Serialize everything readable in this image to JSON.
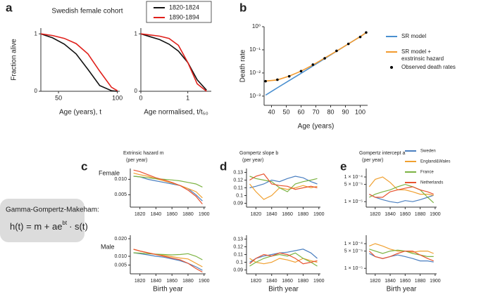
{
  "figure": {
    "panels": [
      "a",
      "b",
      "c",
      "d",
      "e"
    ],
    "rows": [
      "Female",
      "Male"
    ],
    "formula": {
      "heading": "Gamma-Gompertz-Makeham:",
      "lhs": "h(t) =  m + ae",
      "exp": "bt",
      "rhs": "· s(t)"
    }
  },
  "chart_data": [
    {
      "type": "line",
      "title": "Swedish female cohort",
      "xlabel": "Age (years), t",
      "ylabel": "Fraction alive",
      "x": [
        35,
        45,
        55,
        65,
        75,
        85,
        95,
        100
      ],
      "xlim": [
        35,
        102
      ],
      "ylim": [
        0,
        1.1
      ],
      "xticks": [
        50,
        100
      ],
      "yticks": [
        0,
        1
      ],
      "legend": "upper right",
      "series": [
        {
          "name": "1820-1824",
          "color": "#111111",
          "values": [
            1,
            0.93,
            0.82,
            0.65,
            0.38,
            0.1,
            0.01,
            0
          ]
        },
        {
          "name": "1890-1894",
          "color": "#e0201b",
          "values": [
            1,
            0.97,
            0.92,
            0.83,
            0.65,
            0.35,
            0.07,
            0.01
          ]
        }
      ]
    },
    {
      "type": "line",
      "xlabel": "Age normalised, t/t₅₀",
      "x": [
        0,
        0.2,
        0.4,
        0.6,
        0.8,
        1.0,
        1.2,
        1.4
      ],
      "xlim": [
        0,
        1.5
      ],
      "ylim": [
        0,
        1.1
      ],
      "xticks": [
        0,
        1
      ],
      "yticks": [
        0,
        1
      ],
      "series": [
        {
          "color": "#111111",
          "values": [
            1,
            0.95,
            0.9,
            0.82,
            0.7,
            0.5,
            0.2,
            0.02
          ]
        },
        {
          "color": "#e0201b",
          "values": [
            1,
            0.98,
            0.96,
            0.92,
            0.8,
            0.5,
            0.13,
            0
          ]
        }
      ]
    },
    {
      "type": "line",
      "xlabel": "Age (years)",
      "ylabel": "Death rate",
      "ylog": true,
      "legend": "right",
      "x": [
        36,
        44,
        52,
        60,
        68,
        76,
        84,
        92,
        100,
        104
      ],
      "xlim": [
        35,
        105
      ],
      "ylim": [
        0.0004,
        1
      ],
      "xticks": [
        40,
        50,
        60,
        70,
        80,
        90,
        100
      ],
      "yticks": [
        {
          "value": 0.001,
          "label": "10⁻³"
        },
        {
          "value": 0.01,
          "label": "10⁻²"
        },
        {
          "value": 0.1,
          "label": "10⁻¹"
        },
        {
          "value": 1,
          "label": "10⁰"
        }
      ],
      "series": [
        {
          "name": "SR model",
          "color": "#4a8fcf",
          "values": [
            0.0011,
            0.0023,
            0.0047,
            0.0097,
            0.02,
            0.042,
            0.087,
            0.18,
            0.37,
            0.55
          ]
        },
        {
          "name": "SR model + exstrinsic hazard",
          "color": "#f29a2e",
          "values": [
            0.0045,
            0.005,
            0.0073,
            0.012,
            0.022,
            0.044,
            0.088,
            0.18,
            0.37,
            0.55
          ]
        },
        {
          "name": "Observed death rates",
          "color": "#000000",
          "mode": "markers",
          "values": [
            0.0044,
            0.0051,
            0.0072,
            0.012,
            0.023,
            0.043,
            0.09,
            0.18,
            0.36,
            0.56
          ]
        }
      ]
    },
    {
      "type": "line",
      "title": "Extrinsic hazard m",
      "subtitle": "(per year)",
      "x": [
        1812,
        1820,
        1830,
        1840,
        1850,
        1860,
        1870,
        1880,
        1890,
        1898
      ],
      "xlim": [
        1808,
        1902
      ],
      "ylim": [
        0.001,
        0.0135
      ],
      "xticks": [
        1820,
        1840,
        1860,
        1880,
        1900
      ],
      "yticks": [
        {
          "value": 0.005,
          "label": "0.005"
        },
        {
          "value": 0.01,
          "label": "0.010"
        }
      ],
      "series": [
        {
          "color": "#4a7fc0",
          "values": [
            0.011,
            0.0108,
            0.01,
            0.0095,
            0.009,
            0.0085,
            0.008,
            0.007,
            0.005,
            0.003
          ]
        },
        {
          "color": "#f0a030",
          "values": [
            0.012,
            0.0115,
            0.011,
            0.0102,
            0.0095,
            0.0088,
            0.008,
            0.007,
            0.006,
            0.004
          ]
        },
        {
          "color": "#7cb342",
          "values": [
            0.011,
            0.0108,
            0.0105,
            0.0102,
            0.01,
            0.0098,
            0.0095,
            0.009,
            0.0085,
            0.0075
          ]
        },
        {
          "color": "#e8532f",
          "values": [
            0.013,
            0.0125,
            0.0115,
            0.0105,
            0.0098,
            0.009,
            0.008,
            0.0065,
            0.0045,
            0.002
          ]
        }
      ]
    },
    {
      "type": "line",
      "xlabel": "Birth year",
      "x": [
        1812,
        1820,
        1830,
        1840,
        1850,
        1860,
        1870,
        1880,
        1890,
        1898
      ],
      "xlim": [
        1808,
        1902
      ],
      "ylim": [
        0,
        0.022
      ],
      "xticks": [
        1820,
        1840,
        1860,
        1880,
        1900
      ],
      "yticks": [
        {
          "value": 0.005,
          "label": "0.005"
        },
        {
          "value": 0.01,
          "label": "0.010"
        },
        {
          "value": 0.02,
          "label": "0.020"
        }
      ],
      "series": [
        {
          "color": "#4a7fc0",
          "values": [
            0.012,
            0.0115,
            0.0108,
            0.01,
            0.0095,
            0.0085,
            0.0075,
            0.006,
            0.004,
            0.002
          ]
        },
        {
          "color": "#f0a030",
          "values": [
            0.014,
            0.013,
            0.012,
            0.011,
            0.0105,
            0.0098,
            0.009,
            0.0085,
            0.006,
            0.004
          ]
        },
        {
          "color": "#7cb342",
          "values": [
            0.012,
            0.0118,
            0.0115,
            0.0112,
            0.011,
            0.0108,
            0.011,
            0.0115,
            0.01,
            0.008
          ]
        },
        {
          "color": "#e8532f",
          "values": [
            0.014,
            0.013,
            0.012,
            0.011,
            0.01,
            0.009,
            0.008,
            0.006,
            0.003,
            0.001
          ]
        }
      ]
    },
    {
      "type": "line",
      "title": "Gompertz slope b",
      "subtitle": "(per year)",
      "x": [
        1812,
        1820,
        1830,
        1840,
        1850,
        1860,
        1870,
        1880,
        1890,
        1898
      ],
      "xlim": [
        1808,
        1902
      ],
      "ylim": [
        0.085,
        0.135
      ],
      "xticks": [
        1820,
        1840,
        1860,
        1880,
        1900
      ],
      "yticks": [
        0.09,
        0.1,
        0.11,
        0.12,
        0.13
      ],
      "series": [
        {
          "color": "#4a7fc0",
          "values": [
            0.11,
            0.112,
            0.115,
            0.12,
            0.118,
            0.122,
            0.125,
            0.123,
            0.118,
            0.115
          ]
        },
        {
          "color": "#f0a030",
          "values": [
            0.115,
            0.105,
            0.095,
            0.1,
            0.11,
            0.108,
            0.11,
            0.113,
            0.11,
            0.112
          ]
        },
        {
          "color": "#7cb342",
          "values": [
            0.125,
            0.122,
            0.12,
            0.118,
            0.11,
            0.105,
            0.115,
            0.118,
            0.12,
            0.122
          ]
        },
        {
          "color": "#e8532f",
          "values": [
            0.12,
            0.125,
            0.128,
            0.115,
            0.113,
            0.112,
            0.108,
            0.11,
            0.112,
            0.11
          ]
        }
      ]
    },
    {
      "type": "line",
      "xlabel": "Birth year",
      "x": [
        1812,
        1820,
        1830,
        1840,
        1850,
        1860,
        1870,
        1880,
        1890,
        1898
      ],
      "xlim": [
        1808,
        1902
      ],
      "ylim": [
        0.085,
        0.135
      ],
      "xticks": [
        1820,
        1840,
        1860,
        1880,
        1900
      ],
      "yticks": [
        0.09,
        0.1,
        0.11,
        0.12,
        0.13
      ],
      "series": [
        {
          "color": "#4a7fc0",
          "values": [
            0.1,
            0.105,
            0.108,
            0.11,
            0.112,
            0.113,
            0.115,
            0.117,
            0.112,
            0.105
          ]
        },
        {
          "color": "#f0a030",
          "values": [
            0.105,
            0.1,
            0.098,
            0.1,
            0.105,
            0.103,
            0.1,
            0.105,
            0.102,
            0.1
          ]
        },
        {
          "color": "#7cb342",
          "values": [
            0.095,
            0.1,
            0.105,
            0.108,
            0.11,
            0.108,
            0.112,
            0.105,
            0.1,
            0.095
          ]
        },
        {
          "color": "#e8532f",
          "values": [
            0.098,
            0.105,
            0.11,
            0.108,
            0.112,
            0.11,
            0.105,
            0.098,
            0.1,
            0.102
          ]
        }
      ]
    },
    {
      "type": "line",
      "title": "Gompertz intercept a",
      "subtitle": "(per year)",
      "ylog": true,
      "legend": "right",
      "x": [
        1812,
        1820,
        1830,
        1840,
        1850,
        1860,
        1870,
        1880,
        1890,
        1898
      ],
      "xlim": [
        1808,
        1902
      ],
      "ylim": [
        6e-06,
        0.00022
      ],
      "xticks": [
        1820,
        1840,
        1860,
        1880,
        1900
      ],
      "yticks": [
        {
          "value": 1e-05,
          "label": "1 × 10⁻⁵"
        },
        {
          "value": 5e-05,
          "label": "5 × 10⁻⁵"
        },
        {
          "value": 0.0001,
          "label": "1 × 10⁻⁴"
        }
      ],
      "series": [
        {
          "name": "Sweden",
          "color": "#4a7fc0",
          "values": [
            2e-05,
            1.5e-05,
            1.2e-05,
            1e-05,
            9e-06,
            1.1e-05,
            1e-05,
            1.2e-05,
            1.5e-05,
            1.8e-05
          ]
        },
        {
          "name": "England&Wales",
          "color": "#f0a030",
          "values": [
            4e-05,
            8e-05,
            0.0001,
            6e-05,
            3e-05,
            3e-05,
            2.5e-05,
            2e-05,
            2e-05,
            1.8e-05
          ]
        },
        {
          "name": "France",
          "color": "#7cb342",
          "values": [
            1.5e-05,
            2e-05,
            2.5e-05,
            3e-05,
            4e-05,
            5e-05,
            4e-05,
            3e-05,
            1.5e-05,
            9e-06
          ]
        },
        {
          "name": "Netherlands",
          "color": "#e8532f",
          "values": [
            2e-05,
            1.5e-05,
            1.5e-05,
            2.5e-05,
            3e-05,
            3.5e-05,
            4e-05,
            3e-05,
            2.5e-05,
            2e-05
          ]
        }
      ]
    },
    {
      "type": "line",
      "xlabel": "Birth year",
      "ylog": true,
      "x": [
        1812,
        1820,
        1830,
        1840,
        1850,
        1860,
        1870,
        1880,
        1890,
        1898
      ],
      "xlim": [
        1808,
        1902
      ],
      "ylim": [
        6e-06,
        0.00022
      ],
      "xticks": [
        1820,
        1840,
        1860,
        1880,
        1900
      ],
      "yticks": [
        {
          "value": 1e-05,
          "label": "1 × 10⁻⁵"
        },
        {
          "value": 5e-05,
          "label": "5 × 10⁻⁵"
        },
        {
          "value": 0.0001,
          "label": "1 × 10⁻⁴"
        }
      ],
      "series": [
        {
          "color": "#4a7fc0",
          "values": [
            4e-05,
            3e-05,
            2.5e-05,
            3e-05,
            3.5e-05,
            3e-05,
            2.5e-05,
            2e-05,
            2e-05,
            1.8e-05
          ]
        },
        {
          "color": "#f0a030",
          "values": [
            8e-05,
            0.0001,
            8e-05,
            6e-05,
            5e-05,
            5e-05,
            4.5e-05,
            5e-05,
            5e-05,
            4e-05
          ]
        },
        {
          "color": "#7cb342",
          "values": [
            6e-05,
            5e-05,
            4e-05,
            5e-05,
            5.5e-05,
            5e-05,
            4e-05,
            3.5e-05,
            3e-05,
            3e-05
          ]
        },
        {
          "color": "#e8532f",
          "values": [
            5e-05,
            3e-05,
            2.5e-05,
            3e-05,
            4e-05,
            5e-05,
            5e-05,
            3.5e-05,
            2.5e-05,
            2e-05
          ]
        }
      ]
    }
  ]
}
